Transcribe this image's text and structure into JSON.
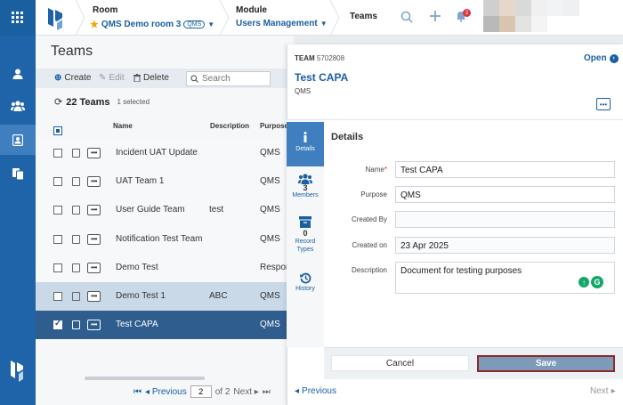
{
  "header": {
    "room_label": "Room",
    "room_value": "QMS Demo room 3",
    "room_tag": "QMS",
    "module_label": "Module",
    "module_value": "Users Management",
    "current_crumb": "Teams",
    "notification_count": "2"
  },
  "list": {
    "title": "Teams",
    "toolbar": {
      "create": "Create",
      "edit": "Edit",
      "delete": "Delete",
      "search_placeholder": "Search"
    },
    "count": "22 Teams",
    "selected": "1 selected",
    "columns": [
      "Name",
      "Description",
      "Purpose"
    ],
    "rows": [
      {
        "name": "Incident UAT Update",
        "description": "",
        "purpose": "QMS"
      },
      {
        "name": "UAT Team 1",
        "description": "",
        "purpose": "QMS"
      },
      {
        "name": "User Guide Team",
        "description": "test",
        "purpose": "QMS"
      },
      {
        "name": "Notification Test Team",
        "description": "",
        "purpose": "QMS"
      },
      {
        "name": "Demo Test",
        "description": "",
        "purpose": "Respon"
      },
      {
        "name": "Demo Test 1",
        "description": "ABC",
        "purpose": "QMS"
      },
      {
        "name": "Test CAPA",
        "description": "",
        "purpose": "QMS"
      }
    ],
    "pager": {
      "previous": "Previous",
      "page": "2",
      "of": "of 2",
      "next": "Next"
    }
  },
  "detail": {
    "type_label": "TEAM",
    "id": "5702808",
    "open": "Open",
    "name": "Test CAPA",
    "subtitle": "QMS",
    "tabs": {
      "details": "Details",
      "members_count": "3",
      "members": "Members",
      "record_types_count": "0",
      "record_types": "Record Types",
      "history": "History"
    },
    "section_title": "Details",
    "fields": {
      "name_label": "Name",
      "name_value": "Test CAPA",
      "purpose_label": "Purpose",
      "purpose_value": "QMS",
      "created_by_label": "Created By",
      "created_by_value": "",
      "created_on_label": "Created on",
      "created_on_value": "23 Apr 2025",
      "description_label": "Description",
      "description_value": "Document for testing purposes"
    },
    "cancel": "Cancel",
    "save": "Save",
    "previous": "Previous",
    "next": "Next"
  },
  "colors": {
    "brand": "#1f63a8",
    "link": "#1a5fa0",
    "selected_row": "#2f5d8e",
    "hover_row": "#c9d9e8"
  }
}
